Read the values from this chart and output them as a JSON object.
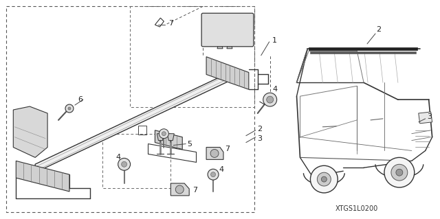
{
  "fig_width": 6.4,
  "fig_height": 3.19,
  "dpi": 100,
  "background_color": "#ffffff",
  "diagram_code": "XTGS1L0200",
  "line_color": "#333333",
  "dash_color": "#555555"
}
